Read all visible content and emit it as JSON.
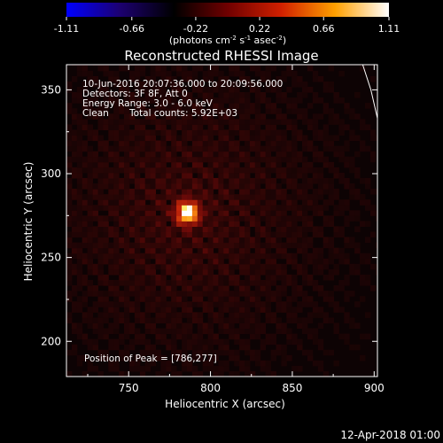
{
  "chart_data": {
    "type": "heatmap",
    "title": "Reconstructed RHESSI Image",
    "xlabel": "Heliocentric X (arcsec)",
    "ylabel": "Heliocentric Y (arcsec)",
    "xlim": [
      712,
      902
    ],
    "ylim": [
      179,
      365
    ],
    "xticks": [
      750,
      800,
      850,
      900
    ],
    "yticks": [
      200,
      250,
      300,
      350
    ],
    "colorbar": {
      "label_prefix": "(photons cm",
      "label_exp1": "-2",
      "label_mid1": " s",
      "label_exp2": "-1",
      "label_mid2": " asec",
      "label_exp3": "-2",
      "label_suffix": ")",
      "min": -1.11,
      "max": 1.11,
      "ticks": [
        "-1.11",
        "-0.66",
        "-0.22",
        "0.22",
        "0.66",
        "1.11"
      ],
      "colors": [
        "#0000ff",
        "#1c0070",
        "#000000",
        "#700000",
        "#d02000",
        "#ffa000",
        "#ffffff"
      ]
    },
    "annotations": {
      "time": "10-Jun-2016 20:07:36.000 to 20:09:56.000",
      "detectors": "Detectors: 3F 8F, Att 0",
      "energy": "Energy Range: 3.0 - 6.0 keV",
      "clean_label": "Clean",
      "counts": "Total counts: 5.92E+03",
      "peak": "Position of Peak = [786,277]"
    },
    "peak": {
      "x": 786,
      "y": 277,
      "value": 1.11
    },
    "limb_curve": [
      [
        893,
        365
      ],
      [
        898,
        350
      ],
      [
        902,
        333
      ]
    ],
    "footer": "12-Apr-2018 01:00"
  }
}
